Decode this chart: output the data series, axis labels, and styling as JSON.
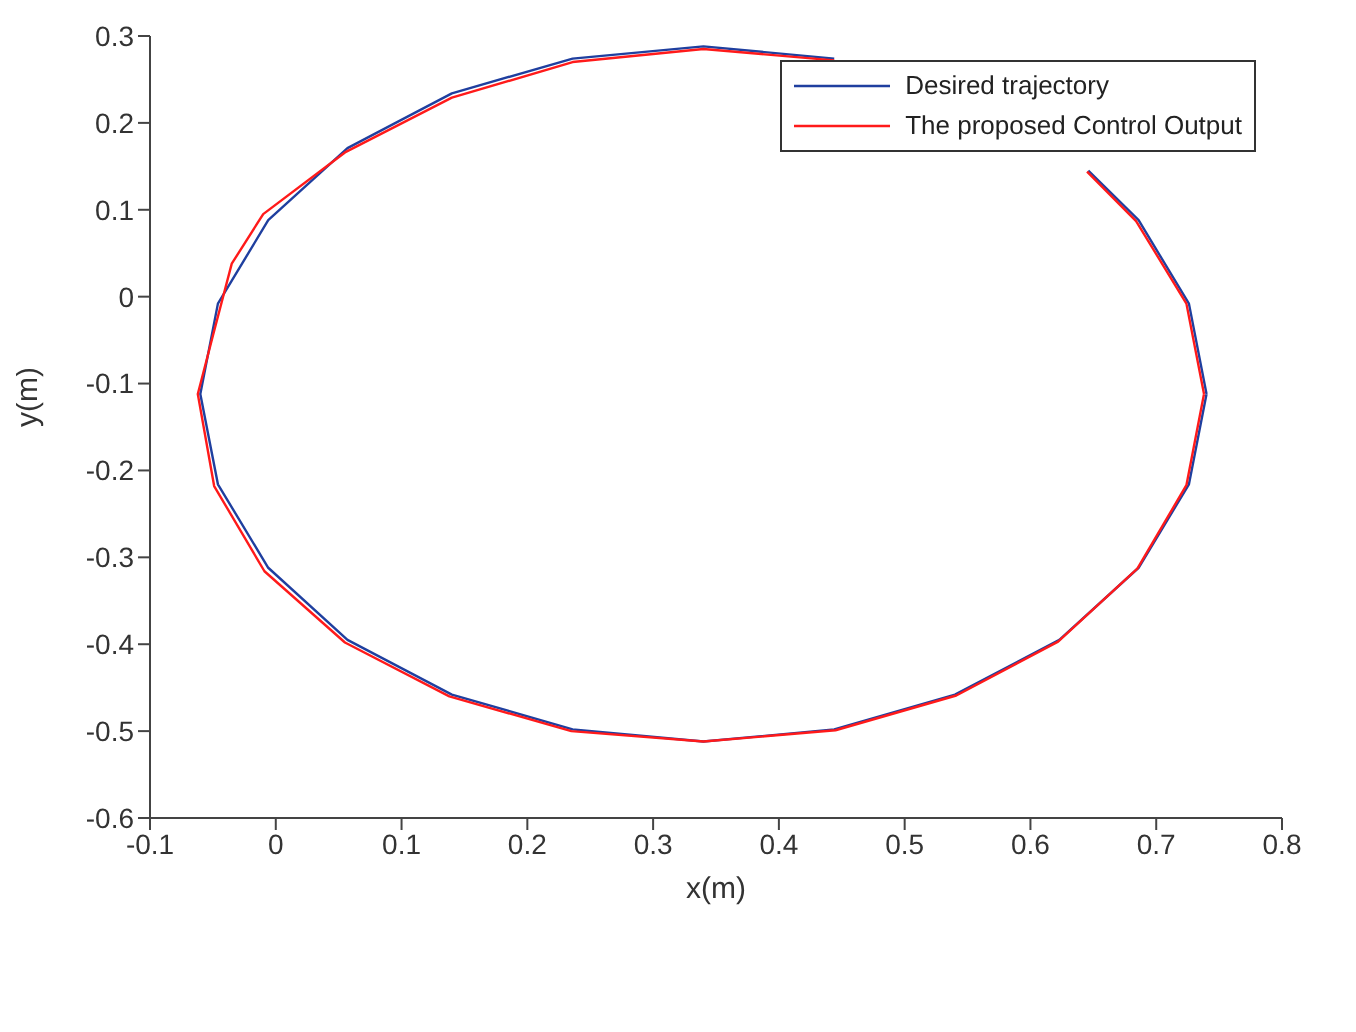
{
  "chart_data": {
    "type": "line",
    "xlabel": "x(m)",
    "ylabel": "y(m)",
    "xlim": [
      -0.1,
      0.8
    ],
    "ylim": [
      -0.6,
      0.3
    ],
    "xticks": [
      -0.1,
      0,
      0.1,
      0.2,
      0.3,
      0.4,
      0.5,
      0.6,
      0.7,
      0.8
    ],
    "yticks": [
      -0.6,
      -0.5,
      -0.4,
      -0.3,
      -0.2,
      -0.1,
      0,
      0.1,
      0.2,
      0.3
    ],
    "legend": "top right",
    "marker": "none",
    "line_style": "solid",
    "grid": false,
    "series": [
      {
        "name": "Desired trajectory",
        "color": "#1f3f9f",
        "x": [
          0.74,
          0.726,
          0.686,
          0.646,
          0.623,
          0.54,
          0.444,
          0.34,
          0.236,
          0.14,
          0.057,
          -0.006,
          -0.046,
          -0.06,
          -0.046,
          -0.006,
          0.057,
          0.14,
          0.236,
          0.34,
          0.444,
          0.54,
          0.623,
          0.686,
          0.726,
          0.74
        ],
        "values": [
          -0.112,
          -0.008,
          0.088,
          0.145,
          null,
          null,
          0.274,
          0.288,
          0.274,
          0.234,
          0.171,
          0.088,
          -0.008,
          -0.112,
          -0.216,
          -0.312,
          -0.395,
          -0.458,
          -0.498,
          -0.512,
          -0.498,
          -0.458,
          -0.395,
          -0.312,
          -0.216,
          -0.112
        ]
      },
      {
        "name": "The proposed Control Output",
        "color": "#ff1a1a",
        "x": [
          0.738,
          0.724,
          0.684,
          0.645,
          0.62,
          0.54,
          0.444,
          0.34,
          0.236,
          0.14,
          0.055,
          -0.01,
          -0.035,
          -0.05,
          -0.062,
          -0.049,
          -0.009,
          0.055,
          0.138,
          0.235,
          0.34,
          0.445,
          0.541,
          0.622,
          0.685,
          0.724,
          0.738
        ],
        "values": [
          -0.112,
          -0.008,
          0.087,
          0.144,
          null,
          null,
          0.272,
          0.285,
          0.27,
          0.229,
          0.166,
          0.095,
          0.038,
          -0.045,
          -0.112,
          -0.218,
          -0.316,
          -0.398,
          -0.46,
          -0.5,
          -0.512,
          -0.499,
          -0.459,
          -0.397,
          -0.313,
          -0.217,
          -0.112
        ]
      }
    ]
  }
}
